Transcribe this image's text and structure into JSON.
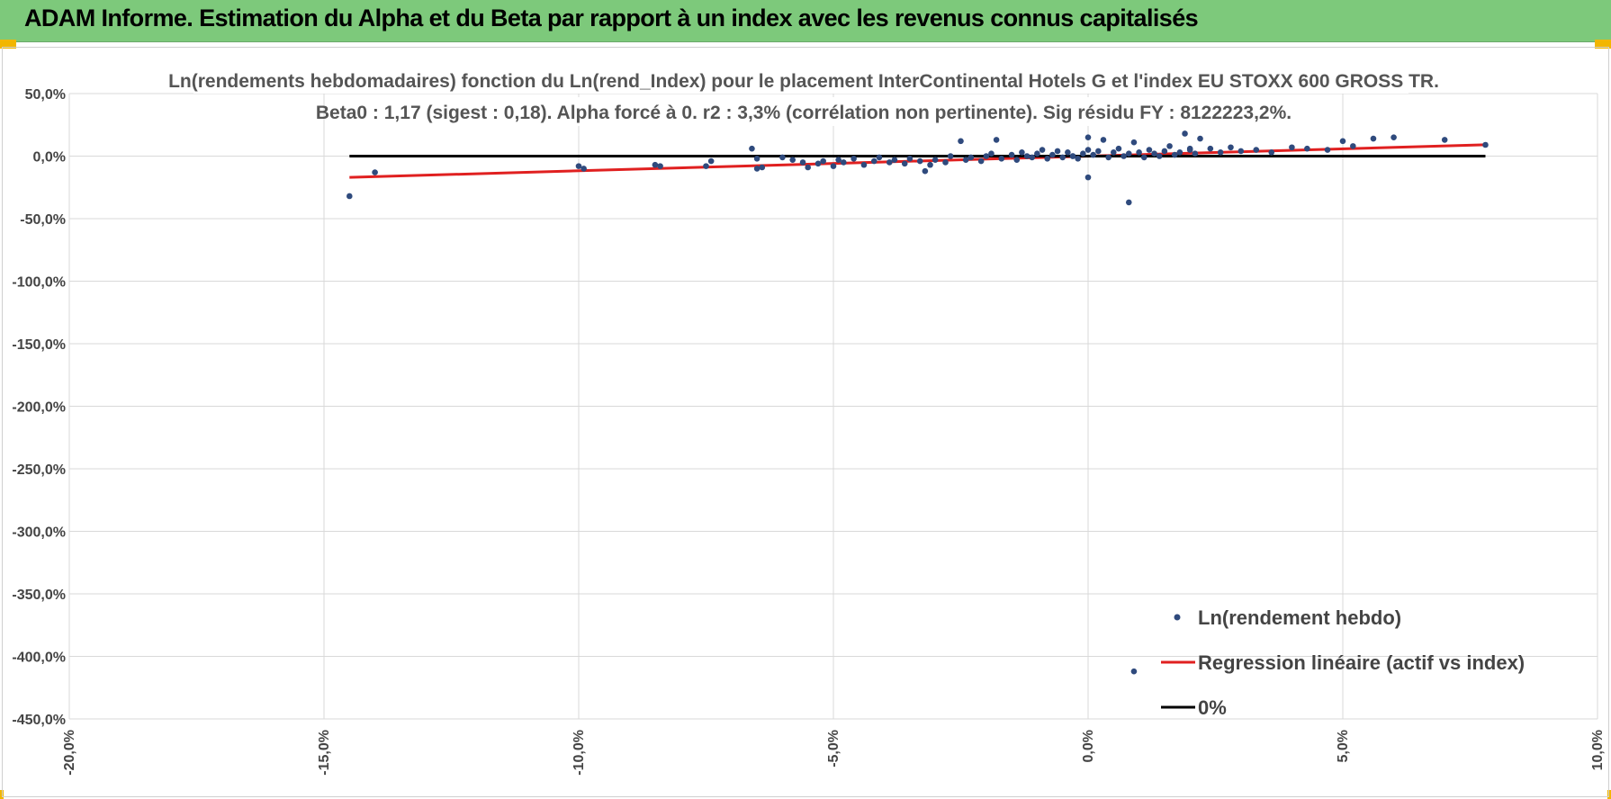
{
  "banner": {
    "title": "ADAM Informe. Estimation du Alpha et du Beta par rapport à un index avec les revenus connus capitalisés",
    "background": "#7dc97b",
    "corner_color": "#f2b600"
  },
  "chart_data": {
    "type": "scatter",
    "title": "Ln(rendements hebdomadaires) fonction du Ln(rend_Index) pour le placement InterContinental Hotels G et l'index EU STOXX 600 GROSS TR.",
    "subtitle": "Beta0 : 1,17 (sigest : 0,18). Alpha forcé à 0. r2 : 3,3% (corrélation non pertinente). Sig résidu FY : 8122223,2%.",
    "xlabel": "",
    "ylabel": "",
    "xlim": [
      -20,
      10
    ],
    "ylim": [
      -450,
      50
    ],
    "x_ticks": [
      "-20,0%",
      "-15,0%",
      "-10,0%",
      "-5,0%",
      "0,0%",
      "5,0%",
      "10,0%"
    ],
    "y_ticks": [
      "50,0%",
      "0,0%",
      "-50,0%",
      "-100,0%",
      "-150,0%",
      "-200,0%",
      "-250,0%",
      "-300,0%",
      "-350,0%",
      "-400,0%",
      "-450,0%"
    ],
    "grid": true,
    "legend_position": "bottom-right",
    "series": [
      {
        "name": "Ln(rendement hebdo)",
        "kind": "scatter",
        "color": "#2f4a7d",
        "x": [
          -14.5,
          -14.0,
          -10.0,
          -9.9,
          -8.5,
          -8.4,
          -7.5,
          -7.4,
          -6.6,
          -6.5,
          -6.5,
          -6.4,
          -6.0,
          -5.8,
          -5.6,
          -5.5,
          -5.3,
          -5.2,
          -5.0,
          -4.9,
          -4.8,
          -4.6,
          -4.4,
          -4.2,
          -4.1,
          -3.9,
          -3.8,
          -3.6,
          -3.5,
          -3.3,
          -3.2,
          -3.1,
          -3.0,
          -2.8,
          -2.7,
          -2.5,
          -2.4,
          -2.3,
          -2.1,
          -2.0,
          -1.9,
          -1.8,
          -1.7,
          -1.5,
          -1.4,
          -1.3,
          -1.2,
          -1.1,
          -1.0,
          -0.9,
          -0.8,
          -0.7,
          -0.6,
          -0.5,
          -0.4,
          -0.3,
          -0.2,
          -0.1,
          0.0,
          0.0,
          0.1,
          0.2,
          0.3,
          0.4,
          0.5,
          0.6,
          0.7,
          0.8,
          0.9,
          1.0,
          1.1,
          1.2,
          1.3,
          1.4,
          1.5,
          1.6,
          1.7,
          1.8,
          1.9,
          2.0,
          2.1,
          2.2,
          2.4,
          2.6,
          2.8,
          3.0,
          3.3,
          3.6,
          4.0,
          4.3,
          4.7,
          5.0,
          5.2,
          5.6,
          6.0,
          7.0,
          7.8,
          0.0,
          0.8,
          0.9,
          2.0,
          -0.3
        ],
        "y": [
          -32,
          -13,
          -8,
          -10,
          -7,
          -8,
          -8,
          -4,
          6,
          -10,
          -2,
          -9,
          -1,
          -3,
          -5,
          -9,
          -6,
          -4,
          -8,
          -3,
          -5,
          -2,
          -7,
          -4,
          -1,
          -5,
          -3,
          -6,
          -2,
          -4,
          -12,
          -7,
          -3,
          -5,
          0,
          12,
          -3,
          -1,
          -4,
          0,
          2,
          13,
          -2,
          1,
          -3,
          3,
          0,
          -1,
          2,
          5,
          -2,
          1,
          4,
          -1,
          3,
          0,
          -2,
          2,
          15,
          -17,
          1,
          4,
          13,
          -1,
          3,
          6,
          0,
          2,
          11,
          3,
          -1,
          5,
          2,
          0,
          4,
          8,
          1,
          3,
          18,
          5,
          2,
          14,
          6,
          3,
          7,
          4,
          5,
          3,
          7,
          6,
          5,
          12,
          8,
          14,
          15,
          13,
          9,
          5,
          -37,
          -412,
          6,
          0
        ]
      },
      {
        "name": "Regression linéaire (actif vs index)",
        "kind": "line",
        "color": "#e02020",
        "x": [
          -14.5,
          7.8
        ],
        "y": [
          -17,
          9.1
        ]
      },
      {
        "name": "0%",
        "kind": "line",
        "color": "#000000",
        "x": [
          -14.5,
          7.8
        ],
        "y": [
          0,
          0
        ]
      }
    ]
  }
}
